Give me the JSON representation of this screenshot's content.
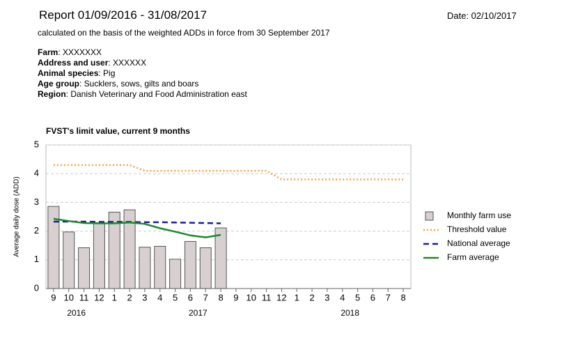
{
  "report": {
    "title": "Report 01/09/2016 - 31/08/2017",
    "date": "Date: 02/10/2017",
    "subtitle": "calculated on the basis of the weighted ADDs in force from 30 September 2017",
    "fields": [
      {
        "label": "Farm",
        "value": ":   XXXXXXX"
      },
      {
        "label": "Address and user",
        "value": ":  XXXXXX"
      },
      {
        "label": "Animal species",
        "value": ": Pig"
      },
      {
        "label": "Age group",
        "value": ": Sucklers, sows, gilts and boars"
      },
      {
        "label": "Region",
        "value": ": Danish Veterinary and Food Administration east"
      }
    ]
  },
  "chart_data": {
    "type": "bar-line",
    "title": "FVST's limit value, current 9 months",
    "y_label": "Average daily dose (ADD)",
    "categories": [
      "9",
      "10",
      "11",
      "12",
      "1",
      "2",
      "3",
      "4",
      "5",
      "6",
      "7",
      "8",
      "9",
      "10",
      "11",
      "12",
      "1",
      "2",
      "3",
      "4",
      "5",
      "6",
      "7",
      "8"
    ],
    "groups": [
      {
        "label": "2016",
        "size": 4
      },
      {
        "label": "2017",
        "size": 12
      },
      {
        "label": "2018",
        "size": 8
      }
    ],
    "ylim": [
      0,
      5
    ],
    "yticks": [
      0,
      1,
      2,
      3,
      4,
      5
    ],
    "grid": true,
    "series": [
      {
        "name": "Monthly farm use",
        "style": "bar",
        "color": "#d8d0d0",
        "values": [
          2.86,
          1.97,
          1.42,
          2.29,
          2.66,
          2.74,
          1.44,
          1.47,
          1.02,
          1.64,
          1.42,
          2.11,
          null,
          null,
          null,
          null,
          null,
          null,
          null,
          null,
          null,
          null,
          null,
          null
        ]
      },
      {
        "name": "Threshold value",
        "style": "dotted",
        "color": "#f5a142",
        "values": [
          4.3,
          4.3,
          4.3,
          4.3,
          4.3,
          4.3,
          4.1,
          4.1,
          4.1,
          4.1,
          4.1,
          4.1,
          4.1,
          4.1,
          4.1,
          3.8,
          3.8,
          3.8,
          3.8,
          3.8,
          3.8,
          3.8,
          3.8,
          3.8
        ]
      },
      {
        "name": "National average",
        "style": "dashed",
        "color": "#1a1aa0",
        "values": [
          2.33,
          2.33,
          2.33,
          2.32,
          2.32,
          2.32,
          2.31,
          2.31,
          2.3,
          2.29,
          2.28,
          2.27,
          null,
          null,
          null,
          null,
          null,
          null,
          null,
          null,
          null,
          null,
          null,
          null
        ]
      },
      {
        "name": "Farm average",
        "style": "solid",
        "color": "#1a8a2a",
        "values": [
          2.43,
          2.35,
          2.28,
          2.27,
          2.27,
          2.3,
          2.25,
          2.1,
          1.98,
          1.85,
          1.78,
          1.87,
          null,
          null,
          null,
          null,
          null,
          null,
          null,
          null,
          null,
          null,
          null,
          null
        ]
      }
    ]
  }
}
